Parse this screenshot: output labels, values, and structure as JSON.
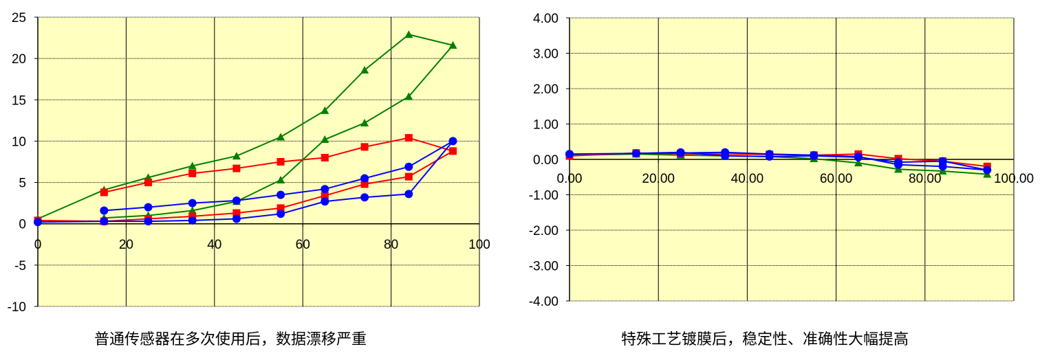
{
  "colors": {
    "plot_bg": "#ffffc0",
    "green": "#008000",
    "red": "#ff0000",
    "blue": "#0000ff",
    "grid": "#000000"
  },
  "chart_data": [
    {
      "type": "line",
      "caption": "普通传感器在多次使用后，数据漂移严重",
      "xlim": [
        0,
        100
      ],
      "ylim": [
        -10,
        25
      ],
      "x_ticks": [
        "0",
        "20",
        "40",
        "60",
        "80",
        "100"
      ],
      "y_ticks": [
        "25",
        "20",
        "15",
        "10",
        "5",
        "0",
        "-5",
        "-10"
      ],
      "grid": true,
      "series": [
        {
          "color": "green",
          "marker": "triangle",
          "x": [
            0,
            15,
            25,
            35,
            45,
            55,
            65,
            74,
            84,
            94,
            84,
            74,
            65,
            55,
            45,
            35,
            25,
            15
          ],
          "y": [
            0.6,
            4.1,
            5.6,
            7.0,
            8.2,
            10.5,
            13.7,
            18.6,
            22.9,
            21.6,
            15.4,
            12.2,
            10.2,
            5.3,
            2.7,
            1.6,
            1.0,
            0.7
          ]
        },
        {
          "color": "red",
          "marker": "square",
          "x": [
            15,
            25,
            35,
            45,
            55,
            65,
            74,
            84,
            94,
            84,
            74,
            65,
            55,
            45,
            35,
            25,
            15,
            0
          ],
          "y": [
            3.8,
            5.0,
            6.1,
            6.7,
            7.5,
            8.0,
            9.3,
            10.4,
            8.8,
            5.7,
            4.8,
            3.4,
            1.9,
            1.3,
            0.9,
            0.6,
            0.3,
            0.4
          ]
        },
        {
          "color": "blue",
          "marker": "circle",
          "x": [
            0,
            15,
            25,
            35,
            45,
            55,
            65,
            74,
            84,
            94,
            84,
            74,
            65,
            55,
            45,
            35,
            25,
            15
          ],
          "y": [
            0.2,
            0.3,
            0.3,
            0.4,
            0.6,
            1.2,
            2.7,
            3.2,
            3.6,
            10.0,
            6.9,
            5.5,
            4.2,
            3.5,
            2.8,
            2.5,
            2.0,
            1.6
          ]
        }
      ]
    },
    {
      "type": "line",
      "caption": "特殊工艺镀膜后，稳定性、准确性大幅提高",
      "xlim": [
        0,
        100
      ],
      "ylim": [
        -4,
        4
      ],
      "x_ticks": [
        "0.00",
        "20.00",
        "40.00",
        "60.00",
        "80.00",
        "100.00"
      ],
      "y_ticks": [
        "4.00",
        "3.00",
        "2.00",
        "1.00",
        "0.00",
        "-1.00",
        "-2.00",
        "-3.00",
        "-4.00"
      ],
      "grid": true,
      "series": [
        {
          "color": "green",
          "marker": "triangle",
          "x": [
            0,
            15,
            25,
            35,
            45,
            55,
            65,
            74,
            84,
            94
          ],
          "y": [
            0.12,
            0.15,
            0.12,
            0.1,
            0.08,
            0.02,
            -0.1,
            -0.28,
            -0.33,
            -0.42
          ]
        },
        {
          "color": "red",
          "marker": "square",
          "x": [
            0,
            15,
            25,
            35,
            45,
            55,
            65,
            74,
            84,
            94
          ],
          "y": [
            0.1,
            0.18,
            0.16,
            0.15,
            0.14,
            0.12,
            0.15,
            0.02,
            -0.05,
            -0.2
          ]
        },
        {
          "color": "blue",
          "marker": "circle",
          "x": [
            0,
            15,
            25,
            35,
            45,
            55,
            65,
            74,
            84,
            94,
            84,
            74,
            65,
            55,
            45,
            35,
            25,
            15,
            0
          ],
          "y": [
            0.15,
            0.17,
            0.18,
            0.2,
            0.15,
            0.12,
            0.08,
            -0.15,
            -0.2,
            -0.3,
            -0.05,
            -0.08,
            0.06,
            0.1,
            0.08,
            0.1,
            0.2,
            0.17,
            0.15
          ]
        }
      ]
    }
  ]
}
